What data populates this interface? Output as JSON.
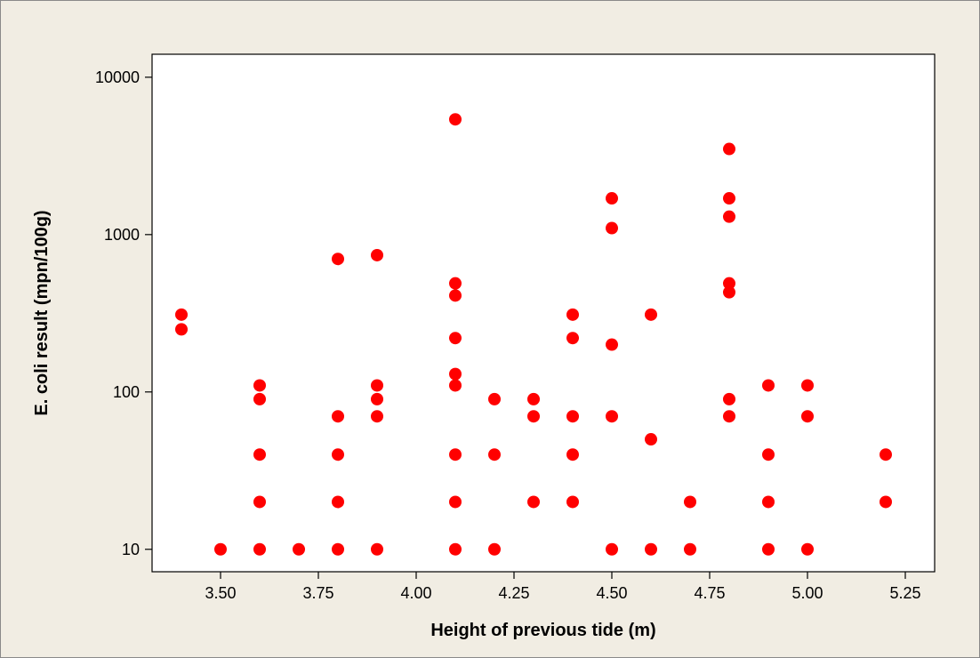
{
  "chart_data": {
    "type": "scatter",
    "title": "",
    "xlabel": "Height of previous tide (m)",
    "ylabel": "E. coli result (mpn/100g)",
    "xlim": [
      3.325,
      5.325
    ],
    "ylim": [
      7.2,
      14000
    ],
    "y_scale": "log",
    "x_ticks": [
      3.5,
      3.75,
      4.0,
      4.25,
      4.5,
      4.75,
      5.0,
      5.25
    ],
    "x_tick_labels": [
      "3.50",
      "3.75",
      "4.00",
      "4.25",
      "4.50",
      "4.75",
      "5.00",
      "5.25"
    ],
    "y_ticks": [
      10,
      100,
      1000,
      10000
    ],
    "y_tick_labels": [
      "10",
      "100",
      "1000",
      "10000"
    ],
    "grid": false,
    "marker_color": "#ff0000",
    "plot_background": "#ffffff",
    "frame_background": "#f1ede3",
    "points": [
      {
        "x": 3.4,
        "y": 310
      },
      {
        "x": 3.4,
        "y": 250
      },
      {
        "x": 3.5,
        "y": 10
      },
      {
        "x": 3.6,
        "y": 110
      },
      {
        "x": 3.6,
        "y": 90
      },
      {
        "x": 3.6,
        "y": 40
      },
      {
        "x": 3.6,
        "y": 20
      },
      {
        "x": 3.6,
        "y": 10
      },
      {
        "x": 3.7,
        "y": 10
      },
      {
        "x": 3.8,
        "y": 700
      },
      {
        "x": 3.8,
        "y": 70
      },
      {
        "x": 3.8,
        "y": 40
      },
      {
        "x": 3.8,
        "y": 20
      },
      {
        "x": 3.8,
        "y": 10
      },
      {
        "x": 3.9,
        "y": 740
      },
      {
        "x": 3.9,
        "y": 110
      },
      {
        "x": 3.9,
        "y": 90
      },
      {
        "x": 3.9,
        "y": 70
      },
      {
        "x": 3.9,
        "y": 10
      },
      {
        "x": 4.1,
        "y": 5400
      },
      {
        "x": 4.1,
        "y": 490
      },
      {
        "x": 4.1,
        "y": 410
      },
      {
        "x": 4.1,
        "y": 220
      },
      {
        "x": 4.1,
        "y": 130
      },
      {
        "x": 4.1,
        "y": 110
      },
      {
        "x": 4.1,
        "y": 40
      },
      {
        "x": 4.1,
        "y": 20
      },
      {
        "x": 4.1,
        "y": 10
      },
      {
        "x": 4.2,
        "y": 90
      },
      {
        "x": 4.2,
        "y": 40
      },
      {
        "x": 4.2,
        "y": 10
      },
      {
        "x": 4.3,
        "y": 90
      },
      {
        "x": 4.3,
        "y": 70
      },
      {
        "x": 4.3,
        "y": 20
      },
      {
        "x": 4.4,
        "y": 310
      },
      {
        "x": 4.4,
        "y": 220
      },
      {
        "x": 4.4,
        "y": 70
      },
      {
        "x": 4.4,
        "y": 40
      },
      {
        "x": 4.4,
        "y": 20
      },
      {
        "x": 4.5,
        "y": 1700
      },
      {
        "x": 4.5,
        "y": 1100
      },
      {
        "x": 4.5,
        "y": 200
      },
      {
        "x": 4.5,
        "y": 70
      },
      {
        "x": 4.5,
        "y": 10
      },
      {
        "x": 4.6,
        "y": 310
      },
      {
        "x": 4.6,
        "y": 50
      },
      {
        "x": 4.6,
        "y": 10
      },
      {
        "x": 4.7,
        "y": 20
      },
      {
        "x": 4.7,
        "y": 10
      },
      {
        "x": 4.8,
        "y": 3500
      },
      {
        "x": 4.8,
        "y": 1700
      },
      {
        "x": 4.8,
        "y": 1300
      },
      {
        "x": 4.8,
        "y": 490
      },
      {
        "x": 4.8,
        "y": 430
      },
      {
        "x": 4.8,
        "y": 90
      },
      {
        "x": 4.8,
        "y": 70
      },
      {
        "x": 4.9,
        "y": 110
      },
      {
        "x": 4.9,
        "y": 40
      },
      {
        "x": 4.9,
        "y": 20
      },
      {
        "x": 4.9,
        "y": 10
      },
      {
        "x": 5.0,
        "y": 110
      },
      {
        "x": 5.0,
        "y": 70
      },
      {
        "x": 5.0,
        "y": 10
      },
      {
        "x": 5.2,
        "y": 40
      },
      {
        "x": 5.2,
        "y": 20
      }
    ]
  }
}
